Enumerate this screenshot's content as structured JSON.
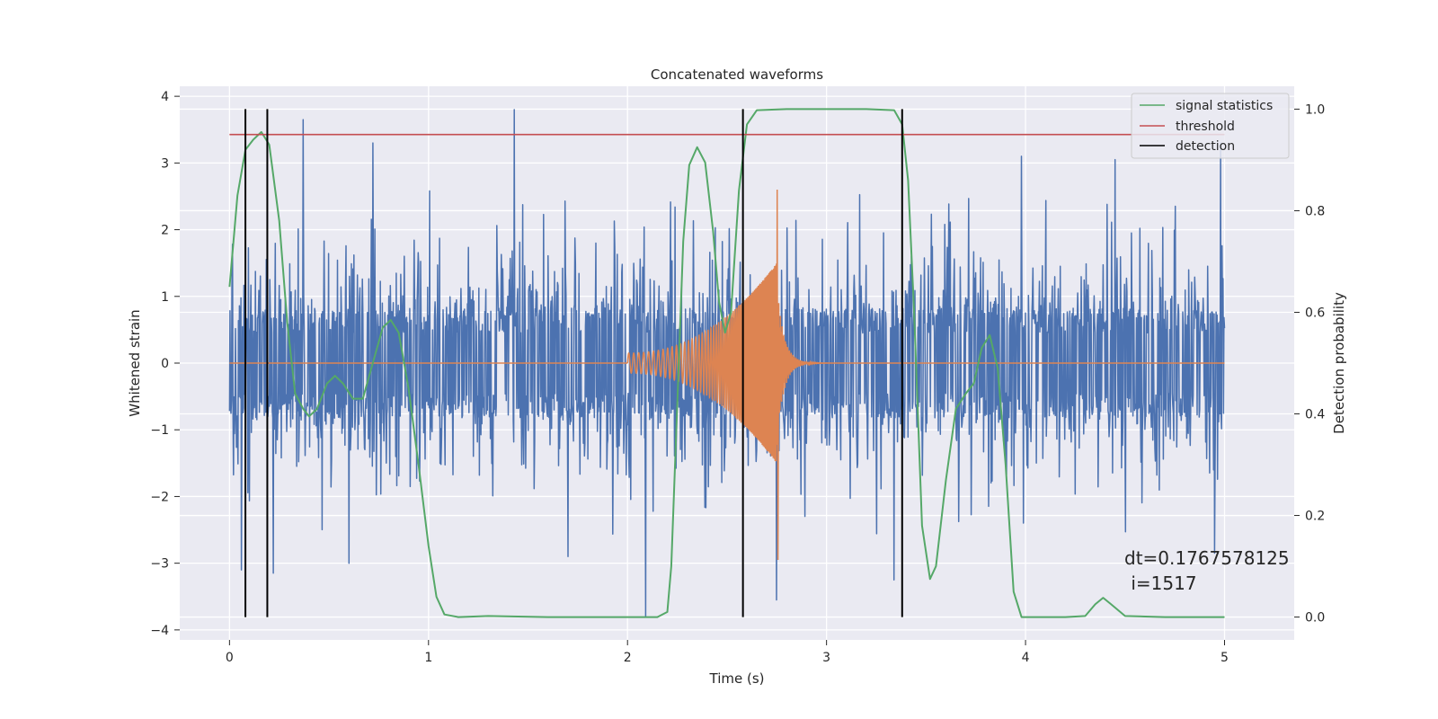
{
  "chart_data": {
    "type": "line",
    "title": "Concatenated waveforms",
    "xlabel": "Time (s)",
    "ylabel": "Whitened strain",
    "ylabel_right": "Detection probability",
    "xlim": [
      -0.25,
      5.35
    ],
    "ylim": [
      -4.15,
      4.15
    ],
    "ylim_right": [
      -0.045,
      1.045
    ],
    "x_ticks": [
      0,
      1,
      2,
      3,
      4,
      5
    ],
    "y_ticks": [
      -4,
      -3,
      -2,
      -1,
      0,
      1,
      2,
      3,
      4
    ],
    "y_ticks_right": [
      0.0,
      0.2,
      0.4,
      0.6,
      0.8,
      1.0
    ],
    "x_tick_labels": [
      "0",
      "1",
      "2",
      "3",
      "4",
      "5"
    ],
    "y_tick_labels": [
      "−4",
      "−3",
      "−2",
      "−1",
      "0",
      "1",
      "2",
      "3",
      "4"
    ],
    "y_tick_labels_right": [
      "0.0",
      "0.2",
      "0.4",
      "0.6",
      "0.8",
      "1.0"
    ],
    "grid": true,
    "legend_position": "top-right",
    "legend": [
      {
        "label": "signal statistics",
        "color": "#55a868"
      },
      {
        "label": "threshold",
        "color": "#c44e52"
      },
      {
        "label": "detection",
        "color": "#000000"
      }
    ],
    "noise": {
      "color": "#4c72b0",
      "x_range": [
        0,
        5
      ],
      "n_samples": 2000,
      "core_abs": 0.75,
      "typical_max": 2.6,
      "extremes": [
        {
          "x": 0.37,
          "y": 3.65
        },
        {
          "x": 1.43,
          "y": 3.8
        },
        {
          "x": 0.72,
          "y": 3.3
        },
        {
          "x": 4.98,
          "y": 3.3
        },
        {
          "x": 3.98,
          "y": 3.1
        },
        {
          "x": 4.45,
          "y": 3.05
        },
        {
          "x": 2.09,
          "y": -3.8
        },
        {
          "x": 2.75,
          "y": -3.55
        },
        {
          "x": 0.06,
          "y": -3.1
        },
        {
          "x": 0.22,
          "y": -3.15
        },
        {
          "x": 0.6,
          "y": -3.0
        },
        {
          "x": 3.34,
          "y": -3.25
        },
        {
          "x": 1.7,
          "y": -2.9
        },
        {
          "x": 4.95,
          "y": -2.85
        }
      ]
    },
    "injected_waveform": {
      "color": "#dd8452",
      "t_start": 2.0,
      "t_merger": 2.75,
      "amp_start": 0.15,
      "amp_peak": 2.6,
      "amp_trough": -2.95,
      "freq_start": 40,
      "freq_end": 230
    },
    "signal_statistics": {
      "axis": "right",
      "color": "#55a868",
      "points": [
        [
          0.0,
          0.65
        ],
        [
          0.04,
          0.83
        ],
        [
          0.08,
          0.92
        ],
        [
          0.12,
          0.94
        ],
        [
          0.16,
          0.955
        ],
        [
          0.2,
          0.93
        ],
        [
          0.25,
          0.78
        ],
        [
          0.29,
          0.58
        ],
        [
          0.33,
          0.44
        ],
        [
          0.37,
          0.41
        ],
        [
          0.4,
          0.395
        ],
        [
          0.44,
          0.41
        ],
        [
          0.49,
          0.46
        ],
        [
          0.53,
          0.475
        ],
        [
          0.57,
          0.46
        ],
        [
          0.62,
          0.43
        ],
        [
          0.67,
          0.43
        ],
        [
          0.72,
          0.5
        ],
        [
          0.77,
          0.57
        ],
        [
          0.81,
          0.585
        ],
        [
          0.85,
          0.56
        ],
        [
          0.9,
          0.45
        ],
        [
          0.95,
          0.3
        ],
        [
          1.0,
          0.14
        ],
        [
          1.04,
          0.04
        ],
        [
          1.08,
          0.005
        ],
        [
          1.15,
          0.0
        ],
        [
          1.3,
          0.002
        ],
        [
          1.6,
          0.0
        ],
        [
          2.0,
          0.0
        ],
        [
          2.15,
          0.0
        ],
        [
          2.2,
          0.01
        ],
        [
          2.22,
          0.1
        ],
        [
          2.25,
          0.42
        ],
        [
          2.28,
          0.74
        ],
        [
          2.31,
          0.89
        ],
        [
          2.35,
          0.925
        ],
        [
          2.39,
          0.895
        ],
        [
          2.43,
          0.76
        ],
        [
          2.46,
          0.62
        ],
        [
          2.49,
          0.56
        ],
        [
          2.52,
          0.6
        ],
        [
          2.56,
          0.84
        ],
        [
          2.6,
          0.97
        ],
        [
          2.65,
          0.998
        ],
        [
          2.8,
          1.0
        ],
        [
          3.0,
          1.0
        ],
        [
          3.2,
          1.0
        ],
        [
          3.34,
          0.998
        ],
        [
          3.38,
          0.97
        ],
        [
          3.41,
          0.86
        ],
        [
          3.44,
          0.6
        ],
        [
          3.48,
          0.18
        ],
        [
          3.52,
          0.075
        ],
        [
          3.55,
          0.1
        ],
        [
          3.6,
          0.27
        ],
        [
          3.65,
          0.41
        ],
        [
          3.7,
          0.44
        ],
        [
          3.74,
          0.46
        ],
        [
          3.78,
          0.53
        ],
        [
          3.82,
          0.555
        ],
        [
          3.86,
          0.49
        ],
        [
          3.9,
          0.3
        ],
        [
          3.94,
          0.05
        ],
        [
          3.98,
          0.0
        ],
        [
          4.2,
          0.0
        ],
        [
          4.3,
          0.002
        ],
        [
          4.35,
          0.025
        ],
        [
          4.39,
          0.038
        ],
        [
          4.43,
          0.025
        ],
        [
          4.5,
          0.002
        ],
        [
          4.7,
          0.0
        ],
        [
          5.0,
          0.0
        ]
      ]
    },
    "threshold": {
      "axis": "right",
      "value": 0.95,
      "x_range": [
        0,
        5
      ],
      "color": "#c44e52"
    },
    "detections": {
      "x": [
        0.08,
        0.19,
        2.58,
        3.38
      ],
      "color": "#000000"
    },
    "annotation": {
      "line1": "dt=0.1767578125",
      "line2": " i=1517"
    }
  }
}
